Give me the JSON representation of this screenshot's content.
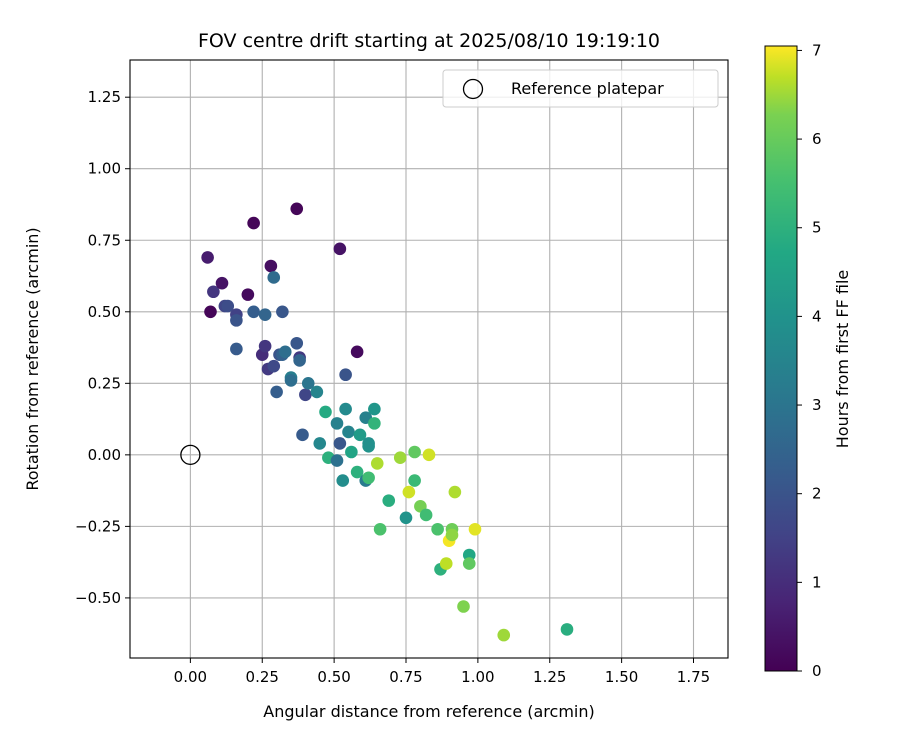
{
  "chart_data": {
    "type": "scatter",
    "title": "FOV centre drift starting at 2025/08/10 19:19:10",
    "xlabel": "Angular distance from reference (arcmin)",
    "ylabel": "Rotation from reference (arcmin)",
    "xlim": [
      -0.21,
      1.87
    ],
    "ylim": [
      -0.71,
      1.38
    ],
    "xticks": [
      "0.00",
      "0.25",
      "0.50",
      "0.75",
      "1.00",
      "1.25",
      "1.50",
      "1.75"
    ],
    "yticks": [
      "−0.50",
      "−0.25",
      "0.00",
      "0.25",
      "0.50",
      "0.75",
      "1.00",
      "1.25"
    ],
    "xtick_values": [
      0,
      0.25,
      0.5,
      0.75,
      1.0,
      1.25,
      1.5,
      1.75
    ],
    "ytick_values": [
      -0.5,
      -0.25,
      0,
      0.25,
      0.5,
      0.75,
      1.0,
      1.25
    ],
    "grid": true,
    "legend": {
      "position": "top-right",
      "entries": [
        "Reference platepar"
      ]
    },
    "reference_point": {
      "x": 0.0,
      "y": 0.0,
      "label": "Reference platepar"
    },
    "colorbar": {
      "label": "Hours from first FF file",
      "range": [
        0,
        7.05
      ],
      "ticks": [
        "0",
        "1",
        "2",
        "3",
        "4",
        "5",
        "6",
        "7"
      ],
      "tick_values": [
        0,
        1,
        2,
        3,
        4,
        5,
        6,
        7
      ],
      "colormap": "viridis"
    },
    "points": [
      {
        "x": 0.06,
        "y": 0.69,
        "h": 0.6
      },
      {
        "x": 0.07,
        "y": 0.5,
        "h": 0.1
      },
      {
        "x": 0.08,
        "y": 0.57,
        "h": 1.2
      },
      {
        "x": 0.11,
        "y": 0.6,
        "h": 0.4
      },
      {
        "x": 0.12,
        "y": 0.52,
        "h": 1.6
      },
      {
        "x": 0.13,
        "y": 0.52,
        "h": 1.8
      },
      {
        "x": 0.16,
        "y": 0.49,
        "h": 1.5
      },
      {
        "x": 0.16,
        "y": 0.47,
        "h": 2.0
      },
      {
        "x": 0.16,
        "y": 0.37,
        "h": 2.2
      },
      {
        "x": 0.2,
        "y": 0.56,
        "h": 0.2
      },
      {
        "x": 0.22,
        "y": 0.81,
        "h": 0.1
      },
      {
        "x": 0.22,
        "y": 0.5,
        "h": 2.3
      },
      {
        "x": 0.25,
        "y": 0.35,
        "h": 1.0
      },
      {
        "x": 0.26,
        "y": 0.38,
        "h": 1.2
      },
      {
        "x": 0.26,
        "y": 0.49,
        "h": 2.5
      },
      {
        "x": 0.27,
        "y": 0.3,
        "h": 1.3
      },
      {
        "x": 0.28,
        "y": 0.66,
        "h": 0.3
      },
      {
        "x": 0.29,
        "y": 0.62,
        "h": 2.7
      },
      {
        "x": 0.29,
        "y": 0.31,
        "h": 1.7
      },
      {
        "x": 0.3,
        "y": 0.22,
        "h": 2.3
      },
      {
        "x": 0.31,
        "y": 0.35,
        "h": 2.0
      },
      {
        "x": 0.32,
        "y": 0.35,
        "h": 2.4
      },
      {
        "x": 0.32,
        "y": 0.5,
        "h": 2.1
      },
      {
        "x": 0.33,
        "y": 0.36,
        "h": 2.8
      },
      {
        "x": 0.35,
        "y": 0.27,
        "h": 3.3
      },
      {
        "x": 0.35,
        "y": 0.26,
        "h": 2.8
      },
      {
        "x": 0.37,
        "y": 0.86,
        "h": 0.1
      },
      {
        "x": 0.37,
        "y": 0.39,
        "h": 2.1
      },
      {
        "x": 0.38,
        "y": 0.34,
        "h": 1.3
      },
      {
        "x": 0.38,
        "y": 0.33,
        "h": 2.5
      },
      {
        "x": 0.39,
        "y": 0.07,
        "h": 2.2
      },
      {
        "x": 0.4,
        "y": 0.21,
        "h": 1.6
      },
      {
        "x": 0.41,
        "y": 0.25,
        "h": 3.0
      },
      {
        "x": 0.44,
        "y": 0.22,
        "h": 3.5
      },
      {
        "x": 0.45,
        "y": 0.04,
        "h": 3.6
      },
      {
        "x": 0.47,
        "y": 0.15,
        "h": 4.8
      },
      {
        "x": 0.48,
        "y": -0.01,
        "h": 5.0
      },
      {
        "x": 0.51,
        "y": 0.11,
        "h": 3.4
      },
      {
        "x": 0.51,
        "y": -0.02,
        "h": 2.9
      },
      {
        "x": 0.52,
        "y": 0.04,
        "h": 2.1
      },
      {
        "x": 0.52,
        "y": 0.72,
        "h": 0.4
      },
      {
        "x": 0.53,
        "y": -0.09,
        "h": 3.8
      },
      {
        "x": 0.54,
        "y": 0.28,
        "h": 2.0
      },
      {
        "x": 0.54,
        "y": 0.16,
        "h": 3.7
      },
      {
        "x": 0.55,
        "y": 0.08,
        "h": 3.5
      },
      {
        "x": 0.56,
        "y": 0.01,
        "h": 4.6
      },
      {
        "x": 0.58,
        "y": 0.36,
        "h": 0.2
      },
      {
        "x": 0.58,
        "y": -0.06,
        "h": 5.0
      },
      {
        "x": 0.59,
        "y": 0.07,
        "h": 4.3
      },
      {
        "x": 0.61,
        "y": 0.13,
        "h": 3.4
      },
      {
        "x": 0.61,
        "y": -0.09,
        "h": 3.2
      },
      {
        "x": 0.62,
        "y": 0.03,
        "h": 4.0
      },
      {
        "x": 0.62,
        "y": -0.08,
        "h": 5.4
      },
      {
        "x": 0.62,
        "y": 0.04,
        "h": 3.9
      },
      {
        "x": 0.64,
        "y": 0.16,
        "h": 4.1
      },
      {
        "x": 0.64,
        "y": 0.11,
        "h": 5.1
      },
      {
        "x": 0.65,
        "y": -0.03,
        "h": 6.6
      },
      {
        "x": 0.66,
        "y": -0.26,
        "h": 5.6
      },
      {
        "x": 0.69,
        "y": -0.16,
        "h": 4.9
      },
      {
        "x": 0.73,
        "y": -0.01,
        "h": 6.5
      },
      {
        "x": 0.75,
        "y": -0.22,
        "h": 4.0
      },
      {
        "x": 0.76,
        "y": -0.13,
        "h": 6.8
      },
      {
        "x": 0.78,
        "y": 0.01,
        "h": 5.9
      },
      {
        "x": 0.78,
        "y": -0.09,
        "h": 5.3
      },
      {
        "x": 0.8,
        "y": -0.18,
        "h": 6.2
      },
      {
        "x": 0.82,
        "y": -0.21,
        "h": 5.4
      },
      {
        "x": 0.83,
        "y": 0.0,
        "h": 6.8
      },
      {
        "x": 0.86,
        "y": -0.26,
        "h": 5.6
      },
      {
        "x": 0.87,
        "y": -0.4,
        "h": 5.0
      },
      {
        "x": 0.89,
        "y": -0.38,
        "h": 6.7
      },
      {
        "x": 0.9,
        "y": -0.3,
        "h": 7.0
      },
      {
        "x": 0.91,
        "y": -0.26,
        "h": 6.1
      },
      {
        "x": 0.91,
        "y": -0.28,
        "h": 6.4
      },
      {
        "x": 0.92,
        "y": -0.13,
        "h": 6.6
      },
      {
        "x": 0.95,
        "y": -0.53,
        "h": 6.3
      },
      {
        "x": 0.97,
        "y": -0.35,
        "h": 4.7
      },
      {
        "x": 0.97,
        "y": -0.38,
        "h": 5.9
      },
      {
        "x": 0.99,
        "y": -0.26,
        "h": 6.9
      },
      {
        "x": 1.09,
        "y": -0.63,
        "h": 6.5
      },
      {
        "x": 1.31,
        "y": -0.61,
        "h": 4.9
      }
    ]
  }
}
